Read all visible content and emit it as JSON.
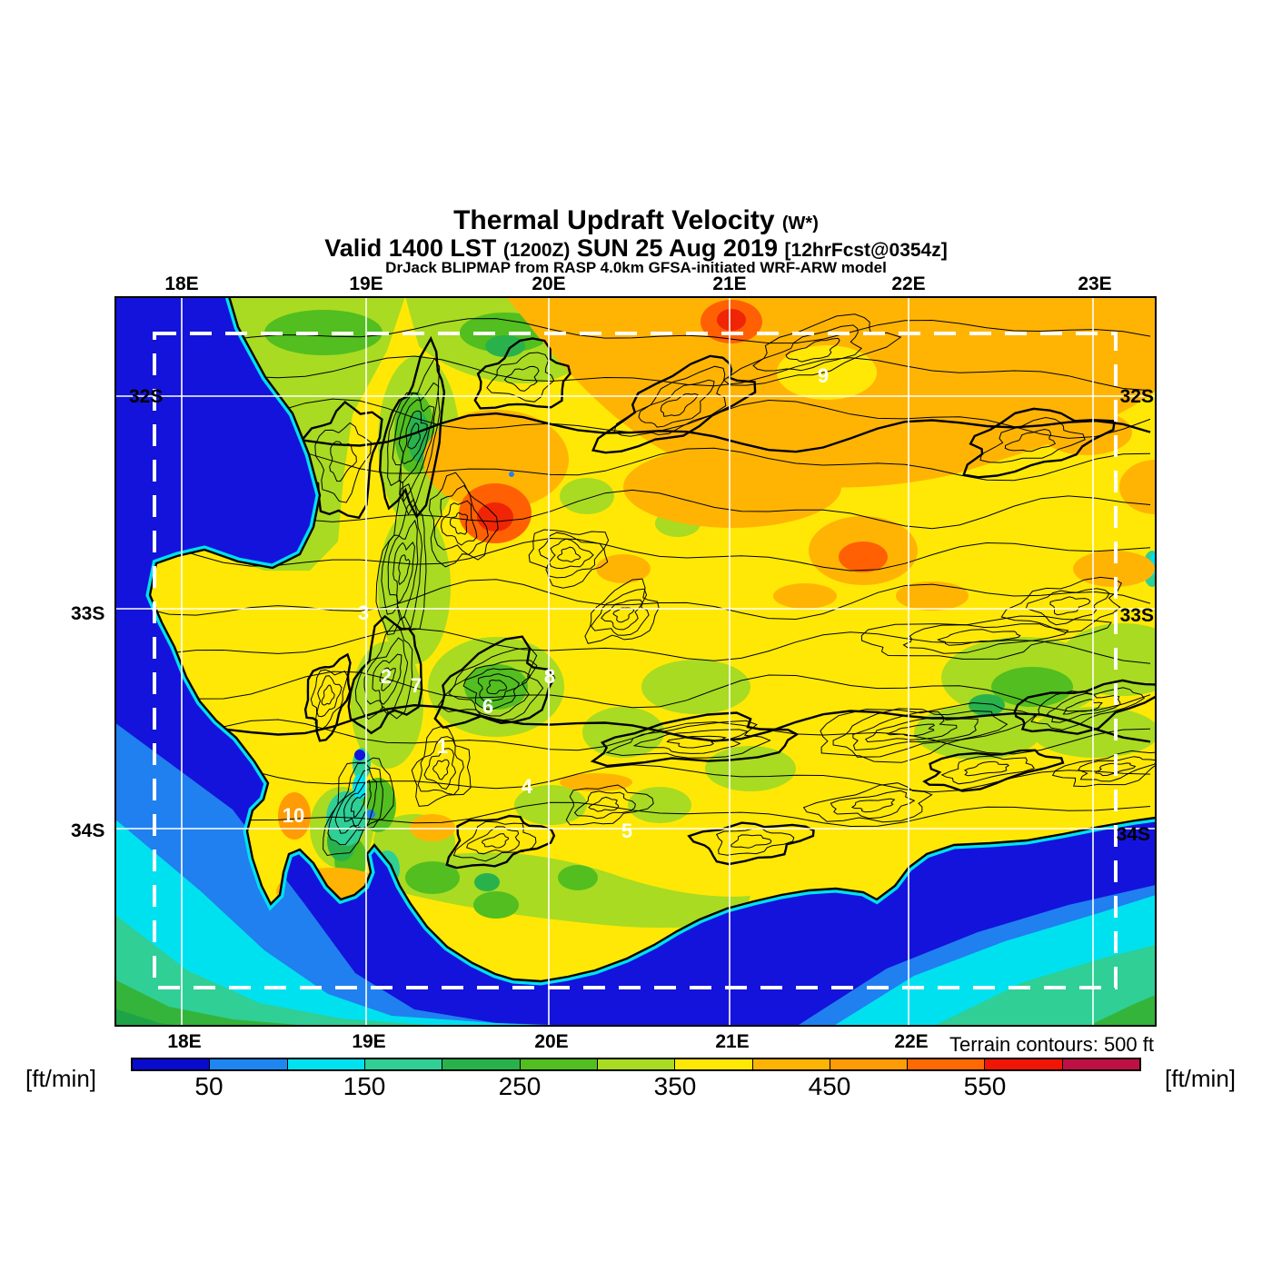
{
  "title": {
    "main": "Thermal Updraft Velocity",
    "main_sub": "(W*)",
    "valid_prefix": "Valid 1400 LST",
    "valid_z": "(1200Z)",
    "valid_date": "SUN 25 Aug 2019",
    "forecast_tag": "[12hrFcst@0354z]",
    "model_line": "DrJack BLIPMAP from RASP 4.0km GFSA-initiated WRF-ARW model"
  },
  "map": {
    "lon_labels_top": [
      "18E",
      "19E",
      "20E",
      "21E",
      "22E",
      "23E"
    ],
    "lon_labels_bottom": [
      "18E",
      "19E",
      "20E",
      "21E",
      "22E"
    ],
    "lat_labels": [
      "32S",
      "33S",
      "34S"
    ],
    "terrain_note": "Terrain contours: 500 ft",
    "sites": [
      "1",
      "2",
      "3",
      "4",
      "5",
      "6",
      "7",
      "8",
      "9",
      "10"
    ],
    "palette": {
      "ocean_deep": "#1313dc",
      "ocean_blue": "#2080f0",
      "ocean_cyan": "#00e1f0",
      "ocean_teal": "#2fcf96",
      "ocean_green": "#34b43a",
      "ocean_green_dark": "#1fa347",
      "land_yellow": "#ffe805",
      "land_light_green": "#a8db22",
      "land_green": "#52be20",
      "orange": "#ffb404",
      "red_orange": "#ff6004",
      "red": "#f02505",
      "grid_white": "#ffffff"
    }
  },
  "colorbar": {
    "unit_left": "[ft/min]",
    "unit_right": "[ft/min]",
    "ticks": [
      "50",
      "150",
      "250",
      "350",
      "450",
      "550"
    ],
    "tick_values_ft_min": [
      50,
      150,
      250,
      350,
      450,
      550
    ],
    "colors": [
      "#0a0ace",
      "#1e86f0",
      "#00e1f0",
      "#2fcf96",
      "#29b24c",
      "#52be20",
      "#a8db22",
      "#ffe805",
      "#ffb404",
      "#ff9b04",
      "#ff6904",
      "#f01505",
      "#be1045"
    ]
  }
}
